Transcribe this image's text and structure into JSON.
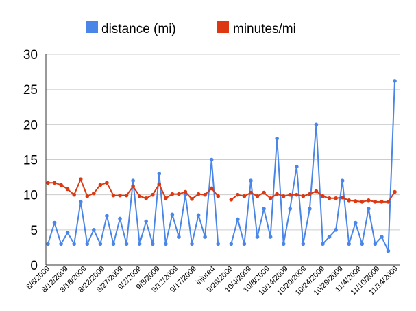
{
  "chart_data": {
    "type": "line",
    "legend_position": "top",
    "grid": "horizontal",
    "ylim": [
      0,
      30
    ],
    "yticks": [
      "0",
      "5",
      "10",
      "15",
      "20",
      "25",
      "30"
    ],
    "xtick_labels": [
      "8/6/2009",
      "8/12/2009",
      "8/18/2009",
      "8/22/2009",
      "8/27/2009",
      "9/2/2009",
      "9/8/2009",
      "9/12/2009",
      "9/17/2009",
      "injured",
      "9/29/2009",
      "10/4/2009",
      "10/8/2009",
      "10/14/2009",
      "10/20/2009",
      "10/24/2009",
      "10/29/2009",
      "11/4/2009",
      "11/10/2009",
      "11/14/2009"
    ],
    "series": [
      {
        "name": "distance (mi)",
        "color": "#4a86e8",
        "values": [
          3,
          6,
          3,
          4.6,
          3,
          9,
          3,
          5,
          3,
          7,
          3,
          6.6,
          3,
          12,
          3,
          6.2,
          3,
          13,
          3,
          7.2,
          4,
          10,
          3,
          7.1,
          4,
          15,
          3,
          null,
          3,
          6.5,
          3,
          12,
          4,
          8,
          4,
          18,
          3,
          8,
          14,
          3,
          8,
          20,
          3,
          4,
          5,
          12,
          3,
          6,
          3,
          8,
          3,
          4,
          2,
          26.2
        ]
      },
      {
        "name": "minutes/mi",
        "color": "#dc3912",
        "values": [
          11.7,
          11.7,
          11.4,
          10.8,
          10,
          12.2,
          9.8,
          10.2,
          11.4,
          11.7,
          9.9,
          9.9,
          9.9,
          11.2,
          9.8,
          9.5,
          10,
          11.5,
          9.5,
          10.1,
          10.1,
          10.4,
          9.4,
          10.1,
          10,
          10.9,
          9.8,
          null,
          9.3,
          10,
          9.8,
          10.3,
          9.8,
          10.3,
          9.5,
          10.1,
          9.8,
          10,
          10,
          9.8,
          10.1,
          10.5,
          9.8,
          9.5,
          9.5,
          9.6,
          9.2,
          9.1,
          9,
          9.2,
          9,
          9,
          9,
          10.4
        ]
      }
    ]
  }
}
